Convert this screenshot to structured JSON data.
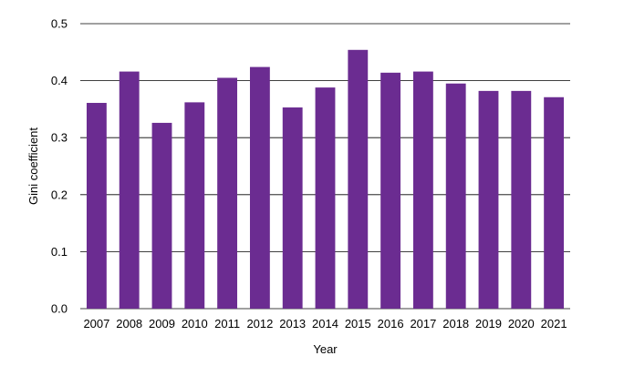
{
  "chart_data": {
    "type": "bar",
    "title": "",
    "xlabel": "Year",
    "ylabel": "Gini coefficient",
    "categories": [
      "2007",
      "2008",
      "2009",
      "2010",
      "2011",
      "2012",
      "2013",
      "2014",
      "2015",
      "2016",
      "2017",
      "2018",
      "2019",
      "2020",
      "2021"
    ],
    "values": [
      0.361,
      0.416,
      0.326,
      0.362,
      0.405,
      0.424,
      0.353,
      0.388,
      0.454,
      0.414,
      0.416,
      0.395,
      0.382,
      0.382,
      0.371
    ],
    "ylim": [
      0,
      0.5
    ],
    "yticks": [
      0,
      0.1,
      0.2,
      0.3,
      0.4,
      0.5
    ],
    "ytick_labels": [
      "0.0",
      "0.1",
      "0.2",
      "0.3",
      "0.4",
      "0.5"
    ],
    "grid": true,
    "legend": "none",
    "colors": {
      "bar": "#6b2c91",
      "grid": "#000000",
      "text": "#000000"
    }
  }
}
